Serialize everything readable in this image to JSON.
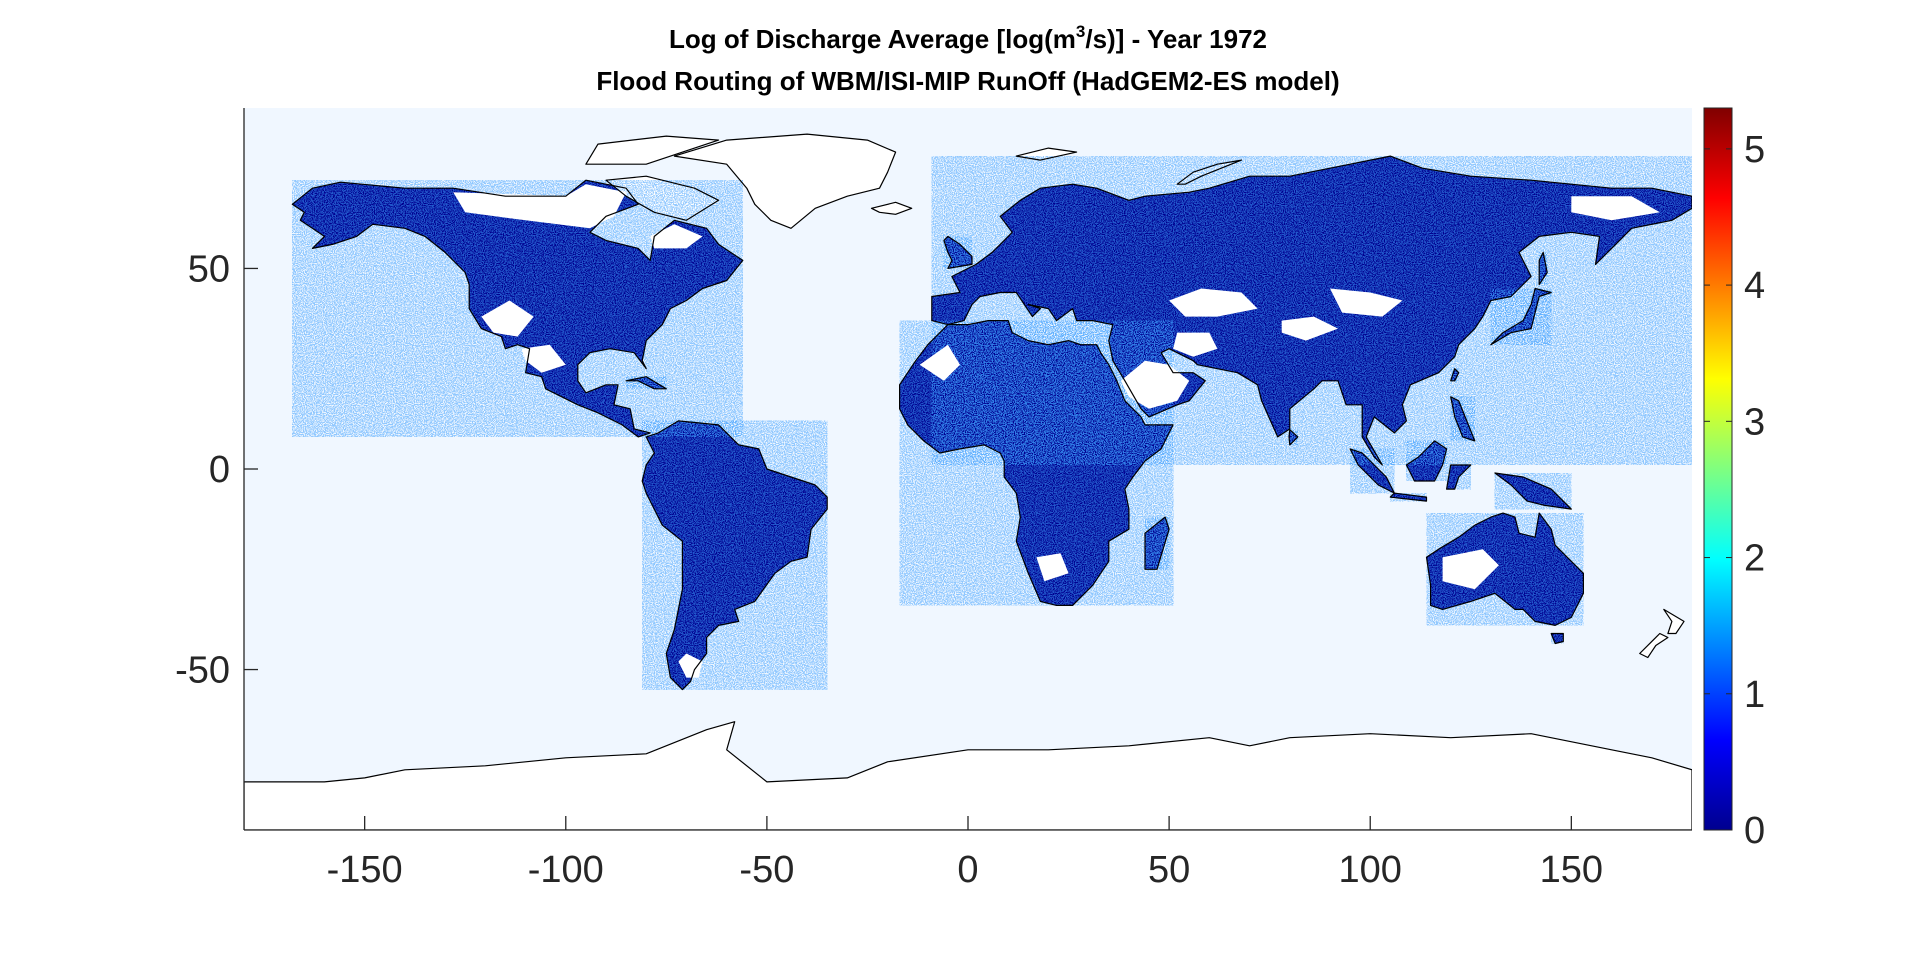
{
  "figure": {
    "title_line1_pre": "Log of Discharge Average [log(m",
    "title_line1_sup": "3",
    "title_line1_post": "/s)] - Year 1972",
    "title_line2": "Flood Routing of WBM/ISI-MIP RunOff (HadGEM2-ES model)"
  },
  "chart_data": {
    "type": "heatmap",
    "title": "Log of Discharge Average [log(m3/s)] - Year 1972",
    "subtitle": "Flood Routing of WBM/ISI-MIP RunOff (HadGEM2-ES model)",
    "xlim": [
      -180,
      180
    ],
    "ylim": [
      -90,
      90
    ],
    "x_ticks": [
      -150,
      -100,
      -50,
      0,
      50,
      100,
      150
    ],
    "x_tick_labels": [
      "-150",
      "-100",
      "-50",
      "0",
      "50",
      "100",
      "150"
    ],
    "y_ticks": [
      -50,
      0,
      50
    ],
    "y_tick_labels": [
      "-50",
      "0",
      "50"
    ],
    "grid": false,
    "colorbar": {
      "colormap": "jet",
      "limits": [
        0,
        5.3
      ],
      "ticks": [
        0,
        1,
        2,
        3,
        4,
        5
      ],
      "tick_labels": [
        "0",
        "1",
        "2",
        "3",
        "4",
        "5"
      ],
      "placement": "right"
    },
    "colors": {
      "ocean": "#f0f7ff",
      "land_base": "#00008f",
      "coast": "#000000"
    }
  }
}
